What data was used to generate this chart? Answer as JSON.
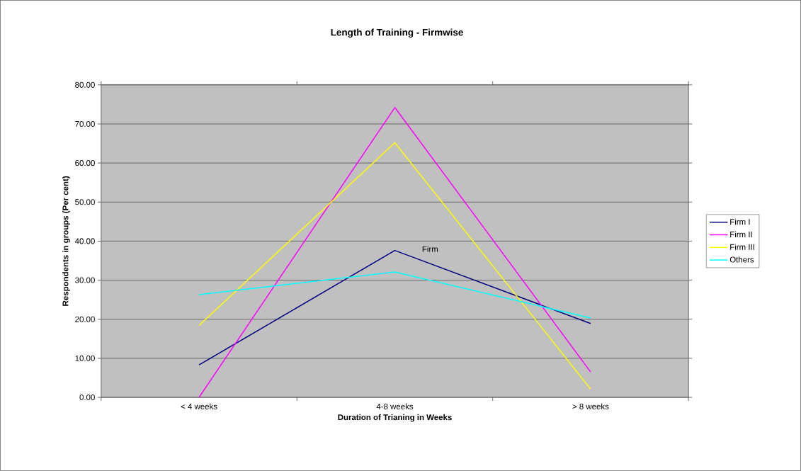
{
  "chart_data": {
    "type": "line",
    "title": "Length of Training - Firmwise",
    "xlabel": "Duration of Trianing in Weeks",
    "ylabel": "Respondents in groups (Per cent)",
    "categories": [
      "< 4 weeks",
      "4-8 weeks",
      "> 8 weeks"
    ],
    "series": [
      {
        "name": "Firm I",
        "color": "#000080",
        "values": [
          8.3,
          37.6,
          18.9
        ]
      },
      {
        "name": "Firm II",
        "color": "#ff00ff",
        "values": [
          0,
          74.2,
          6.5
        ]
      },
      {
        "name": "Firm III",
        "color": "#ffff00",
        "values": [
          18.4,
          65.2,
          2.1
        ]
      },
      {
        "name": "Others",
        "color": "#00ffff",
        "values": [
          26.3,
          32.1,
          20.3
        ]
      }
    ],
    "annotations": [
      "Firm"
    ],
    "ylim": [
      0,
      80
    ],
    "yticks": [
      {
        "value": 0,
        "label": "0.00"
      },
      {
        "value": 10,
        "label": "10.00"
      },
      {
        "value": 20,
        "label": "20.00"
      },
      {
        "value": 30,
        "label": "30.00"
      },
      {
        "value": 40,
        "label": "40.00"
      },
      {
        "value": 50,
        "label": "50.00"
      },
      {
        "value": 60,
        "label": "60.00"
      },
      {
        "value": 70,
        "label": "70.00"
      },
      {
        "value": 80,
        "label": "80.00"
      }
    ],
    "grid": "y",
    "legend": "right",
    "marker": "none",
    "line_style": "solid"
  }
}
